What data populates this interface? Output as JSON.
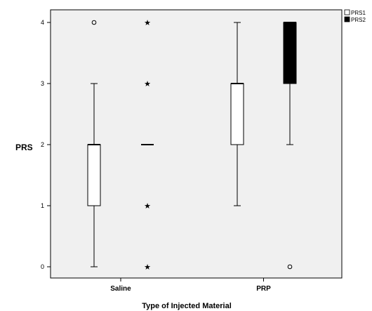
{
  "chart_data": {
    "type": "boxplot",
    "xlabel": "Type of Injected Material",
    "ylabel": "PRS",
    "ylim": [
      -0.1,
      4.15
    ],
    "yticks": [
      0,
      1,
      2,
      3,
      4
    ],
    "categories": [
      "Saline",
      "PRP"
    ],
    "legend": {
      "placement": "top-right"
    },
    "series": [
      {
        "name": "PRS1",
        "fill": "#ffffff",
        "boxes": [
          {
            "category": "Saline",
            "whisker_low": 0,
            "q1": 1,
            "median": 2,
            "q3": 2,
            "whisker_high": 3,
            "outliers": [
              4
            ],
            "extremes": []
          },
          {
            "category": "PRP",
            "whisker_low": 1,
            "q1": 2,
            "median": 3,
            "q3": 3,
            "whisker_high": 4,
            "outliers": [],
            "extremes": []
          }
        ]
      },
      {
        "name": "PRS2",
        "fill": "#000000",
        "boxes": [
          {
            "category": "Saline",
            "whisker_low": 2,
            "q1": 2,
            "median": 2,
            "q3": 2,
            "whisker_high": 2,
            "outliers": [],
            "extremes": [
              0,
              1,
              3,
              4
            ]
          },
          {
            "category": "PRP",
            "whisker_low": 2,
            "q1": 3,
            "median": 4,
            "q3": 4,
            "whisker_high": 4,
            "outliers": [
              0
            ],
            "extremes": []
          }
        ]
      }
    ],
    "colors": {
      "plot_background": "#f0f0f0",
      "line": "#000000"
    }
  }
}
